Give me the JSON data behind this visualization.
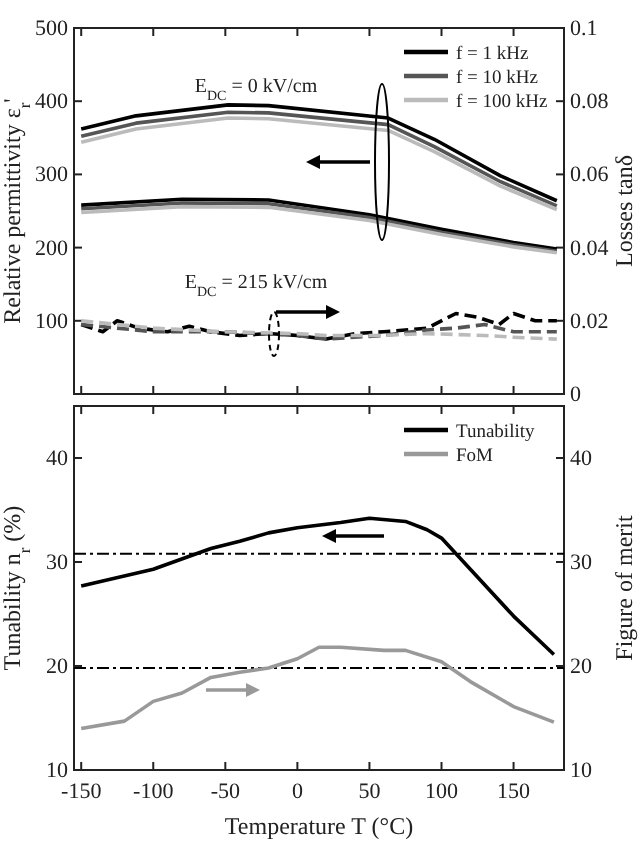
{
  "chart_data": [
    {
      "type": "line",
      "xlim": [
        -155,
        185
      ],
      "xticks": [
        -150,
        -100,
        -50,
        0,
        50,
        100,
        150
      ],
      "ylim": [
        0,
        500
      ],
      "yticks": [
        {
          "value": 0,
          "label": null
        },
        100,
        200,
        300,
        400,
        500
      ],
      "y2lim": [
        0,
        0.1
      ],
      "y2ticks": [
        0,
        0.02,
        0.04,
        0.06,
        0.08,
        0.1
      ],
      "ylabel": "Relative permittivity ε$_{r}$'",
      "y2label": "Losses tanδ",
      "tick_labels": "y",
      "legend": "top right",
      "grid": false,
      "marker": "none",
      "annotations": [
        "E$_{DC}$ = 0 kV/cm",
        "E$_{DC}$ = 215 kV/cm"
      ],
      "series": [
        {
          "name": "f = 1 kHz",
          "color": "#000000",
          "x": [
            -150,
            -112,
            -48,
            -20,
            63,
            95,
            141,
            180
          ],
          "values": [
            362,
            380,
            395,
            394,
            377,
            348,
            298,
            264
          ]
        },
        {
          "name": "f = 10 kHz",
          "color": "#555555",
          "x": [
            -150,
            -112,
            -48,
            -20,
            63,
            95,
            141,
            180
          ],
          "values": [
            352,
            370,
            385,
            384,
            368,
            338,
            290,
            257
          ]
        },
        {
          "name": "f = 100 kHz",
          "color": "#bbbbbb",
          "x": [
            -150,
            -112,
            -48,
            -20,
            63,
            95,
            141,
            180
          ],
          "values": [
            344,
            362,
            377,
            376,
            360,
            331,
            284,
            252
          ]
        },
        {
          "color": "#000000",
          "x": [
            -150,
            -80,
            -20,
            50,
            100,
            150,
            180
          ],
          "values": [
            258,
            266,
            265,
            245,
            225,
            207,
            198
          ]
        },
        {
          "color": "#555555",
          "x": [
            -150,
            -80,
            -20,
            50,
            100,
            150,
            180
          ],
          "values": [
            253,
            261,
            260,
            241,
            221,
            204,
            195
          ]
        },
        {
          "color": "#bbbbbb",
          "x": [
            -150,
            -80,
            -20,
            50,
            100,
            150,
            180
          ],
          "values": [
            248,
            256,
            255,
            237,
            218,
            201,
            193
          ]
        },
        {
          "color": "#000000",
          "axis": "y2",
          "line_style": "dashed",
          "x": [
            -150,
            -135,
            -125,
            -110,
            -90,
            -75,
            -60,
            -40,
            -20,
            0,
            20,
            40,
            60,
            90,
            110,
            125,
            140,
            150,
            165,
            180
          ],
          "values": [
            0.019,
            0.017,
            0.02,
            0.018,
            0.017,
            0.0185,
            0.017,
            0.016,
            0.0165,
            0.016,
            0.015,
            0.0165,
            0.017,
            0.018,
            0.022,
            0.021,
            0.019,
            0.022,
            0.02,
            0.02
          ]
        },
        {
          "color": "#555555",
          "axis": "y2",
          "line_style": "dashed",
          "x": [
            -150,
            -100,
            -50,
            0,
            20,
            60,
            90,
            110,
            130,
            150,
            180
          ],
          "values": [
            0.019,
            0.017,
            0.017,
            0.016,
            0.015,
            0.016,
            0.0175,
            0.018,
            0.019,
            0.017,
            0.017
          ]
        },
        {
          "color": "#bbbbbb",
          "axis": "y2",
          "line_style": "dashed",
          "x": [
            -150,
            -100,
            -50,
            0,
            20,
            60,
            90,
            130,
            150,
            180
          ],
          "values": [
            0.02,
            0.018,
            0.017,
            0.0165,
            0.016,
            0.016,
            0.0165,
            0.016,
            0.0155,
            0.015
          ]
        }
      ]
    },
    {
      "type": "line",
      "xlim": [
        -155,
        185
      ],
      "xticks": [
        -150,
        -100,
        -50,
        0,
        50,
        100,
        150
      ],
      "ylim": [
        10,
        45
      ],
      "yticks": [
        10,
        20,
        30,
        40
      ],
      "y2lim": [
        10,
        45
      ],
      "y2ticks": [
        10,
        20,
        30,
        40
      ],
      "xlabel": "Temperature T (°C)",
      "ylabel": "Tunability n$_{r}$ (%)",
      "y2label": "Figure of merit",
      "legend": "top right",
      "grid": false,
      "marker": "none",
      "ref_lines": [
        {
          "axis": "y",
          "value": 30.8,
          "line_style": "dashdot",
          "color": "#000000"
        },
        {
          "axis": "y",
          "value": 19.8,
          "line_style": "dashdot",
          "color": "#000000"
        }
      ],
      "series": [
        {
          "name": "Tunability",
          "color": "#000000",
          "x": [
            -150,
            -100,
            -60,
            -40,
            -20,
            0,
            30,
            50,
            75,
            90,
            100,
            120,
            150,
            178
          ],
          "values": [
            27.7,
            29.3,
            31.3,
            32,
            32.8,
            33.3,
            33.8,
            34.2,
            33.9,
            33.1,
            32.3,
            29.3,
            24.8,
            21.1
          ]
        },
        {
          "name": "FoM",
          "color": "#999999",
          "axis": "y2",
          "x": [
            -150,
            -120,
            -100,
            -80,
            -60,
            -40,
            -20,
            0,
            15,
            30,
            60,
            75,
            100,
            120,
            150,
            178
          ],
          "values": [
            14,
            14.7,
            16.6,
            17.4,
            18.9,
            19.4,
            19.8,
            20.7,
            21.8,
            21.8,
            21.5,
            21.5,
            20.4,
            18.5,
            16.1,
            14.6
          ]
        }
      ]
    }
  ]
}
